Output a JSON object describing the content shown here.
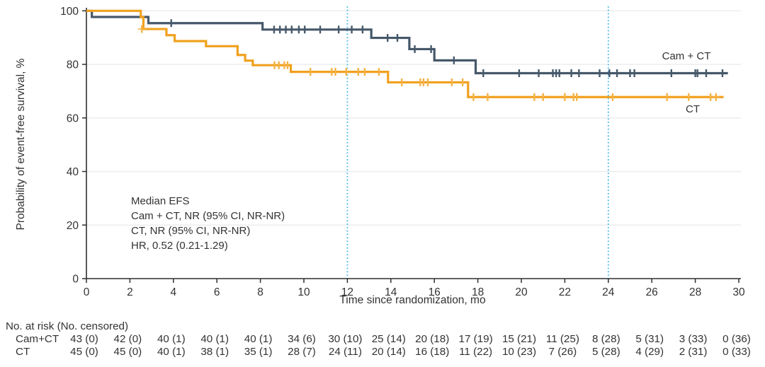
{
  "figure": {
    "y_axis_title": "Probability of event-free survival, %",
    "x_axis_title": "Time since randomization, mo",
    "annotation": {
      "line1": "Median EFS",
      "line2": "Cam + CT, NR (95% CI, NR-NR)",
      "line3": "CT, NR (95% CI, NR-NR)",
      "line4": "HR, 0.52 (0.21-1.29)"
    },
    "curve_labels": {
      "cam_ct": "Cam + CT",
      "ct": "CT"
    }
  },
  "risk_table": {
    "header": "No. at risk (No. censored)",
    "time_points": [
      0,
      2,
      4,
      6,
      8,
      10,
      12,
      14,
      16,
      18,
      20,
      22,
      24,
      26,
      28,
      30
    ],
    "rows": [
      {
        "label": "Cam+CT",
        "values": [
          "43 (0)",
          "42 (0)",
          "40 (1)",
          "40 (1)",
          "40 (1)",
          "34 (6)",
          "30 (10)",
          "25 (14)",
          "20 (18)",
          "17 (19)",
          "15 (21)",
          "11 (25)",
          "8 (28)",
          "5 (31)",
          "3 (33)",
          "0 (36)"
        ]
      },
      {
        "label": "CT",
        "values": [
          "45 (0)",
          "45 (0)",
          "40 (1)",
          "38 (1)",
          "35 (1)",
          "28 (7)",
          "24 (11)",
          "20 (14)",
          "16 (18)",
          "11 (22)",
          "10 (23)",
          "7 (26)",
          "5 (28)",
          "4 (29)",
          "2 (31)",
          "0 (33)"
        ]
      }
    ]
  },
  "chart_data": {
    "type": "line",
    "subtype": "kaplan-meier-step",
    "title": "",
    "xlabel": "Time since randomization, mo",
    "ylabel": "Probability of event-free survival, %",
    "xlim": [
      0,
      30
    ],
    "ylim": [
      0,
      100
    ],
    "x_ticks": [
      0,
      2,
      4,
      6,
      8,
      10,
      12,
      14,
      16,
      18,
      20,
      22,
      24,
      26,
      28,
      30
    ],
    "y_ticks": [
      0,
      20,
      40,
      60,
      80,
      100
    ],
    "grid": true,
    "legend_position": "inline-right",
    "reference_lines_x": [
      12,
      24
    ],
    "colors": {
      "reference_line": "#45b8e8",
      "grid": "#ececec",
      "axis": "#2f2f2f",
      "text": "#333333"
    },
    "series": [
      {
        "name": "Cam + CT",
        "color": "#46586a",
        "censor_color": "#46586a",
        "end_x": 29.5,
        "steps": [
          [
            0,
            100
          ],
          [
            0.25,
            97.7
          ],
          [
            2.85,
            95.4
          ],
          [
            8.1,
            93.0
          ],
          [
            13.1,
            89.9
          ],
          [
            14.85,
            85.7
          ],
          [
            16.0,
            81.5
          ],
          [
            17.9,
            76.7
          ]
        ],
        "censors": [
          [
            3.9,
            95.4
          ],
          [
            8.63,
            93.0
          ],
          [
            8.9,
            93.0
          ],
          [
            9.17,
            93.0
          ],
          [
            9.44,
            93.0
          ],
          [
            9.77,
            93.0
          ],
          [
            10.04,
            93.0
          ],
          [
            10.75,
            93.0
          ],
          [
            11.6,
            93.0
          ],
          [
            12.2,
            93.0
          ],
          [
            12.7,
            93.0
          ],
          [
            13.85,
            89.9
          ],
          [
            14.3,
            89.9
          ],
          [
            15.1,
            85.7
          ],
          [
            15.85,
            85.7
          ],
          [
            16.9,
            81.5
          ],
          [
            18.25,
            76.7
          ],
          [
            19.9,
            76.7
          ],
          [
            20.8,
            76.7
          ],
          [
            21.45,
            76.7
          ],
          [
            21.6,
            76.7
          ],
          [
            21.75,
            76.7
          ],
          [
            22.3,
            76.7
          ],
          [
            22.65,
            76.7
          ],
          [
            23.6,
            76.7
          ],
          [
            24.05,
            76.7
          ],
          [
            24.4,
            76.7
          ],
          [
            25.0,
            76.7
          ],
          [
            25.2,
            76.7
          ],
          [
            26.9,
            76.7
          ],
          [
            28.0,
            76.7
          ],
          [
            28.1,
            76.7
          ],
          [
            28.5,
            76.7
          ],
          [
            29.25,
            76.7,
            "plus"
          ]
        ]
      },
      {
        "name": "CT",
        "color": "#f0a11f",
        "censor_color": "#f4b245",
        "end_x": 29.3,
        "steps": [
          [
            0,
            100
          ],
          [
            2.5,
            97.6
          ],
          [
            2.62,
            93.2
          ],
          [
            3.68,
            90.9
          ],
          [
            4.06,
            88.7
          ],
          [
            5.5,
            86.8
          ],
          [
            6.95,
            83.5
          ],
          [
            7.3,
            81.4
          ],
          [
            7.65,
            79.7
          ],
          [
            9.4,
            77.2
          ],
          [
            13.87,
            73.3
          ],
          [
            17.55,
            67.8
          ]
        ],
        "censors": [
          [
            2.55,
            93.2,
            "plus"
          ],
          [
            8.65,
            79.7
          ],
          [
            8.85,
            79.7
          ],
          [
            9.1,
            79.7
          ],
          [
            9.25,
            79.7
          ],
          [
            10.3,
            77.2
          ],
          [
            11.28,
            77.2
          ],
          [
            11.45,
            77.2
          ],
          [
            11.95,
            77.2
          ],
          [
            12.5,
            77.2
          ],
          [
            12.8,
            77.2
          ],
          [
            13.45,
            77.2
          ],
          [
            14.5,
            73.3
          ],
          [
            15.35,
            73.3
          ],
          [
            15.5,
            73.3
          ],
          [
            15.7,
            73.3
          ],
          [
            16.8,
            73.3
          ],
          [
            17.3,
            73.3
          ],
          [
            17.8,
            67.8
          ],
          [
            18.45,
            67.8
          ],
          [
            20.6,
            67.8
          ],
          [
            21.0,
            67.8
          ],
          [
            22.0,
            67.8
          ],
          [
            22.4,
            67.8
          ],
          [
            22.55,
            67.8
          ],
          [
            24.2,
            67.8
          ],
          [
            26.7,
            67.8
          ],
          [
            27.7,
            67.8
          ],
          [
            28.7,
            67.8
          ],
          [
            28.95,
            67.8,
            "plus"
          ]
        ]
      }
    ]
  }
}
